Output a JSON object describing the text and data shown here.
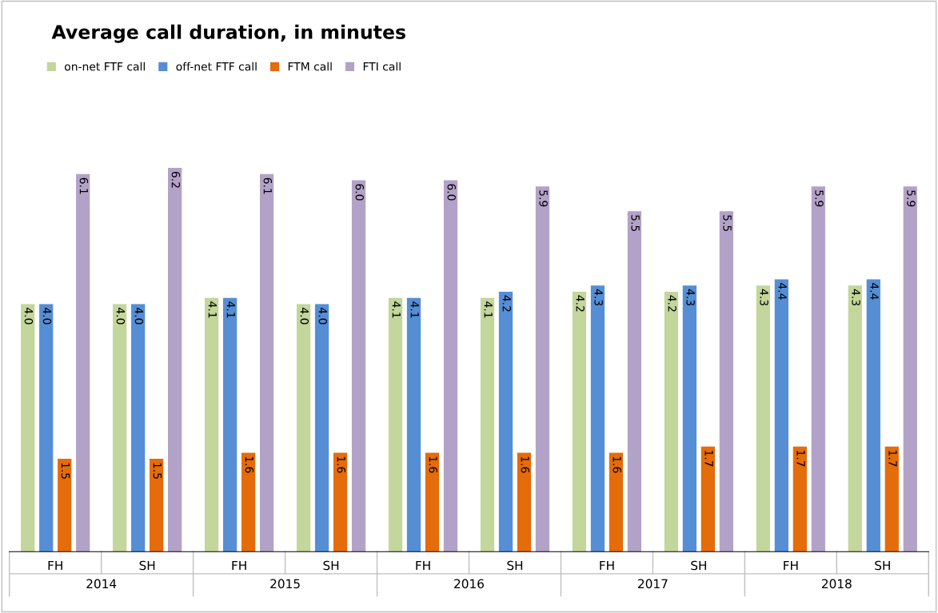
{
  "chart_data": {
    "type": "bar",
    "title": "Average call duration, in minutes",
    "categories": [
      "FH",
      "SH",
      "FH",
      "SH",
      "FH",
      "SH",
      "FH",
      "SH",
      "FH",
      "SH"
    ],
    "series": [
      {
        "name": "on-net FTF call",
        "color": "#c3d69b",
        "values": [
          4.0,
          4.0,
          4.1,
          4.0,
          4.1,
          4.1,
          4.2,
          4.2,
          4.3,
          4.3
        ],
        "value_labels": [
          "4.0",
          "4.0",
          "4.1",
          "4.0",
          "4.1",
          "4.1",
          "4.2",
          "4.2",
          "4.3",
          "4.3"
        ]
      },
      {
        "name": "off-net FTF call",
        "color": "#558ed5",
        "values": [
          4.0,
          4.0,
          4.1,
          4.0,
          4.1,
          4.2,
          4.3,
          4.3,
          4.4,
          4.4
        ],
        "value_labels": [
          "4.0",
          "4.0",
          "4.1",
          "4.0",
          "4.1",
          "4.2",
          "4.3",
          "4.3",
          "4.4",
          "4.4"
        ]
      },
      {
        "name": "FTM call",
        "color": "#e46c0a",
        "values": [
          1.5,
          1.5,
          1.6,
          1.6,
          1.6,
          1.6,
          1.6,
          1.7,
          1.7,
          1.7
        ],
        "value_labels": [
          "1.5",
          "1.5",
          "1.6",
          "1.6",
          "1.6",
          "1.6",
          "1.6",
          "1.7",
          "1.7",
          "1.7"
        ]
      },
      {
        "name": "FTI call",
        "color": "#b3a2c7",
        "values": [
          6.1,
          6.2,
          6.1,
          6.0,
          6.0,
          5.9,
          5.5,
          5.5,
          5.9,
          5.9
        ],
        "value_labels": [
          "6.1",
          "6.2",
          "6.1",
          "6.0",
          "6.0",
          "5.9",
          "5.5",
          "5.5",
          "5.9",
          "5.9"
        ]
      }
    ],
    "annotations": [
      "2014",
      "2015",
      "2016",
      "2017",
      "2018"
    ],
    "legend": "top left"
  }
}
